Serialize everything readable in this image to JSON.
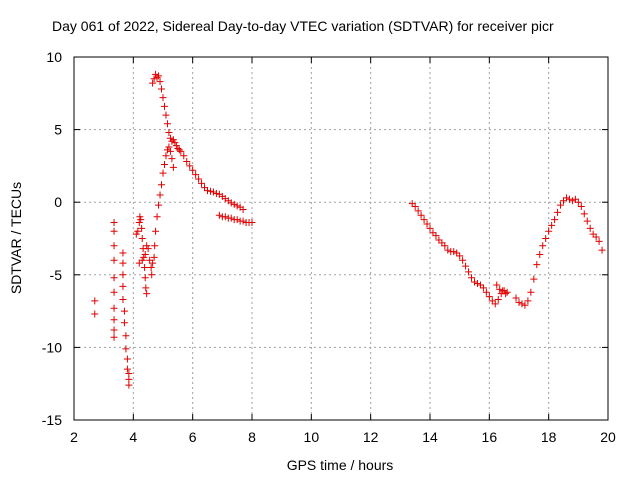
{
  "chart_data": {
    "type": "scatter",
    "title": "Day 061 of 2022, Sidereal Day-to-day VTEC variation (SDTVAR) for receiver picr",
    "xlabel": "GPS time / hours",
    "ylabel": "SDTVAR / TECUs",
    "xlim": [
      2,
      20
    ],
    "ylim": [
      -15,
      10
    ],
    "xticks": [
      2,
      4,
      6,
      8,
      10,
      12,
      14,
      16,
      18,
      20
    ],
    "yticks": [
      -15,
      -10,
      -5,
      0,
      5,
      10
    ],
    "xtick_labels": [
      "2",
      "4",
      "6",
      "8",
      "10",
      "12",
      "14",
      "16",
      "18",
      "20"
    ],
    "ytick_labels": [
      "-15",
      "-10",
      "-5",
      "0",
      "5",
      "10"
    ],
    "grid": true,
    "marker": "+",
    "color": "#e00000",
    "series": [
      {
        "name": "SDTVAR",
        "points": [
          [
            2.7,
            -6.8
          ],
          [
            2.7,
            -7.7
          ],
          [
            3.35,
            -1.4
          ],
          [
            3.35,
            -2.0
          ],
          [
            3.35,
            -3.0
          ],
          [
            3.35,
            -4.0
          ],
          [
            3.35,
            -5.2
          ],
          [
            3.35,
            -6.2
          ],
          [
            3.35,
            -7.3
          ],
          [
            3.35,
            -8.1
          ],
          [
            3.35,
            -8.8
          ],
          [
            3.35,
            -9.3
          ],
          [
            3.65,
            -3.5
          ],
          [
            3.65,
            -4.2
          ],
          [
            3.65,
            -5.0
          ],
          [
            3.65,
            -5.8
          ],
          [
            3.65,
            -6.7
          ],
          [
            3.7,
            -7.5
          ],
          [
            3.7,
            -8.3
          ],
          [
            3.75,
            -9.2
          ],
          [
            3.75,
            -10.1
          ],
          [
            3.8,
            -10.8
          ],
          [
            3.8,
            -11.5
          ],
          [
            3.85,
            -11.8
          ],
          [
            3.85,
            -12.2
          ],
          [
            3.85,
            -12.6
          ],
          [
            4.1,
            -2.2
          ],
          [
            4.15,
            -2.0
          ],
          [
            4.2,
            -1.4
          ],
          [
            4.22,
            -1.0
          ],
          [
            4.25,
            -1.2
          ],
          [
            4.28,
            -1.8
          ],
          [
            4.3,
            -2.5
          ],
          [
            4.33,
            -3.2
          ],
          [
            4.35,
            -3.8
          ],
          [
            4.38,
            -4.5
          ],
          [
            4.4,
            -5.2
          ],
          [
            4.42,
            -5.9
          ],
          [
            4.45,
            -6.3
          ],
          [
            4.2,
            -4.2
          ],
          [
            4.3,
            -4.0
          ],
          [
            4.4,
            -3.6
          ],
          [
            4.45,
            -3.0
          ],
          [
            4.5,
            -3.2
          ],
          [
            4.55,
            -4.0
          ],
          [
            4.6,
            -4.5
          ],
          [
            4.62,
            -5.0
          ],
          [
            4.65,
            -4.2
          ],
          [
            4.7,
            -3.8
          ],
          [
            4.72,
            -3.0
          ],
          [
            4.75,
            -2.0
          ],
          [
            4.8,
            -1.0
          ],
          [
            4.85,
            -0.2
          ],
          [
            4.9,
            0.5
          ],
          [
            4.95,
            1.2
          ],
          [
            5.0,
            2.0
          ],
          [
            5.05,
            2.6
          ],
          [
            5.1,
            3.2
          ],
          [
            5.15,
            3.6
          ],
          [
            5.2,
            3.8
          ],
          [
            5.25,
            3.5
          ],
          [
            5.3,
            3.0
          ],
          [
            5.35,
            2.4
          ],
          [
            4.65,
            8.2
          ],
          [
            4.7,
            8.5
          ],
          [
            4.75,
            8.8
          ],
          [
            4.8,
            8.6
          ],
          [
            4.85,
            8.7
          ],
          [
            4.9,
            8.3
          ],
          [
            4.95,
            7.8
          ],
          [
            5.0,
            7.2
          ],
          [
            5.05,
            6.6
          ],
          [
            5.1,
            6.0
          ],
          [
            5.15,
            5.4
          ],
          [
            5.2,
            4.8
          ],
          [
            5.25,
            4.4
          ],
          [
            5.3,
            4.2
          ],
          [
            5.35,
            4.3
          ],
          [
            5.4,
            4.1
          ],
          [
            5.45,
            3.9
          ],
          [
            5.5,
            3.7
          ],
          [
            5.55,
            3.6
          ],
          [
            5.6,
            3.5
          ],
          [
            5.7,
            3.2
          ],
          [
            5.8,
            2.8
          ],
          [
            5.9,
            2.5
          ],
          [
            6.0,
            2.2
          ],
          [
            6.1,
            1.9
          ],
          [
            6.2,
            1.6
          ],
          [
            6.3,
            1.3
          ],
          [
            6.4,
            1.0
          ],
          [
            6.5,
            0.8
          ],
          [
            6.6,
            0.75
          ],
          [
            6.7,
            0.7
          ],
          [
            6.8,
            0.6
          ],
          [
            6.9,
            0.55
          ],
          [
            7.0,
            0.4
          ],
          [
            7.1,
            0.25
          ],
          [
            7.2,
            0.1
          ],
          [
            7.3,
            -0.05
          ],
          [
            7.4,
            -0.15
          ],
          [
            7.5,
            -0.25
          ],
          [
            7.6,
            -0.35
          ],
          [
            7.7,
            -0.5
          ],
          [
            6.9,
            -0.9
          ],
          [
            7.0,
            -1.0
          ],
          [
            7.1,
            -1.0
          ],
          [
            7.2,
            -1.1
          ],
          [
            7.3,
            -1.1
          ],
          [
            7.4,
            -1.2
          ],
          [
            7.5,
            -1.2
          ],
          [
            7.6,
            -1.3
          ],
          [
            7.7,
            -1.3
          ],
          [
            7.8,
            -1.4
          ],
          [
            7.9,
            -1.4
          ],
          [
            8.0,
            -1.4
          ],
          [
            13.4,
            -0.1
          ],
          [
            13.5,
            -0.3
          ],
          [
            13.6,
            -0.6
          ],
          [
            13.7,
            -0.9
          ],
          [
            13.8,
            -1.2
          ],
          [
            13.9,
            -1.5
          ],
          [
            14.0,
            -1.8
          ],
          [
            14.1,
            -2.1
          ],
          [
            14.2,
            -2.3
          ],
          [
            14.3,
            -2.6
          ],
          [
            14.4,
            -2.8
          ],
          [
            14.5,
            -3.0
          ],
          [
            14.6,
            -3.3
          ],
          [
            14.7,
            -3.4
          ],
          [
            14.8,
            -3.4
          ],
          [
            14.9,
            -3.5
          ],
          [
            15.0,
            -3.7
          ],
          [
            15.1,
            -4.0
          ],
          [
            15.2,
            -4.4
          ],
          [
            15.3,
            -4.8
          ],
          [
            15.4,
            -5.2
          ],
          [
            15.5,
            -5.5
          ],
          [
            15.6,
            -5.6
          ],
          [
            15.7,
            -5.7
          ],
          [
            15.8,
            -5.9
          ],
          [
            15.9,
            -6.2
          ],
          [
            16.0,
            -6.5
          ],
          [
            16.1,
            -6.8
          ],
          [
            16.2,
            -7.0
          ],
          [
            16.3,
            -6.7
          ],
          [
            16.4,
            -6.3
          ],
          [
            16.5,
            -6.1
          ],
          [
            16.6,
            -6.2
          ],
          [
            16.25,
            -5.7
          ],
          [
            16.35,
            -6.0
          ],
          [
            16.45,
            -6.1
          ],
          [
            16.55,
            -6.3
          ],
          [
            16.9,
            -6.6
          ],
          [
            17.0,
            -6.9
          ],
          [
            17.1,
            -7.0
          ],
          [
            17.2,
            -7.1
          ],
          [
            17.3,
            -6.8
          ],
          [
            17.4,
            -6.2
          ],
          [
            17.5,
            -5.3
          ],
          [
            17.6,
            -4.3
          ],
          [
            17.7,
            -3.6
          ],
          [
            17.8,
            -3.0
          ],
          [
            17.9,
            -2.5
          ],
          [
            18.0,
            -2.0
          ],
          [
            18.1,
            -1.6
          ],
          [
            18.2,
            -1.2
          ],
          [
            18.3,
            -0.7
          ],
          [
            18.4,
            -0.2
          ],
          [
            18.5,
            0.1
          ],
          [
            18.6,
            0.3
          ],
          [
            18.7,
            0.2
          ],
          [
            18.8,
            0.1
          ],
          [
            18.9,
            0.2
          ],
          [
            19.0,
            0.0
          ],
          [
            19.1,
            -0.3
          ],
          [
            19.2,
            -0.8
          ],
          [
            19.3,
            -1.3
          ],
          [
            19.4,
            -1.8
          ],
          [
            19.5,
            -2.2
          ],
          [
            19.6,
            -2.4
          ],
          [
            19.7,
            -2.7
          ],
          [
            19.8,
            -3.3
          ]
        ]
      }
    ]
  }
}
